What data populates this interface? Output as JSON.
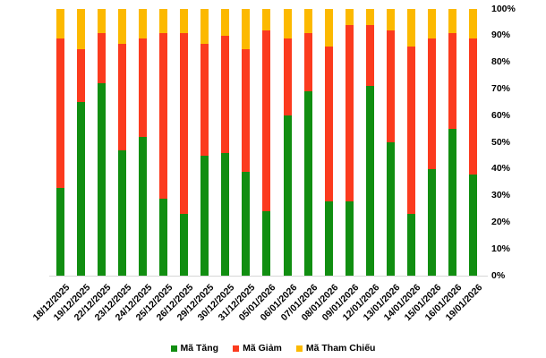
{
  "chart_data": {
    "type": "bar",
    "stacked": true,
    "percent_stacked": true,
    "title": "",
    "xlabel": "",
    "ylabel": "",
    "ylim": [
      0,
      100
    ],
    "grid": false,
    "y_axis_side": "right",
    "legend_position": "bottom",
    "y_ticks": [
      "100%",
      "90%",
      "80%",
      "70%",
      "60%",
      "50%",
      "40%",
      "30%",
      "20%",
      "10%",
      "0%"
    ],
    "categories": [
      "18/12/2025",
      "19/12/2025",
      "22/12/2025",
      "23/12/2025",
      "24/12/2025",
      "25/12/2025",
      "26/12/2025",
      "29/12/2025",
      "30/12/2025",
      "31/12/2025",
      "05/01/2026",
      "06/01/2026",
      "07/01/2026",
      "08/01/2026",
      "09/01/2026",
      "12/01/2026",
      "13/01/2026",
      "14/01/2026",
      "15/01/2026",
      "16/01/2026",
      "19/01/2026"
    ],
    "series": [
      {
        "name": "Mã Tăng",
        "color": "#118e11",
        "values": [
          33,
          65,
          72,
          47,
          52,
          29,
          23,
          45,
          46,
          39,
          24,
          60,
          69,
          28,
          28,
          71,
          50,
          23,
          40,
          55,
          38
        ]
      },
      {
        "name": "Mã Giảm",
        "color": "#fb3b1e",
        "values": [
          56,
          20,
          19,
          40,
          37,
          62,
          68,
          42,
          44,
          46,
          68,
          29,
          22,
          58,
          66,
          23,
          42,
          63,
          49,
          36,
          51
        ]
      },
      {
        "name": "Mã Tham Chiếu",
        "color": "#fcb900",
        "values": [
          11,
          15,
          9,
          13,
          11,
          9,
          9,
          13,
          10,
          15,
          8,
          11,
          9,
          14,
          6,
          6,
          8,
          14,
          11,
          9,
          11
        ]
      }
    ]
  }
}
